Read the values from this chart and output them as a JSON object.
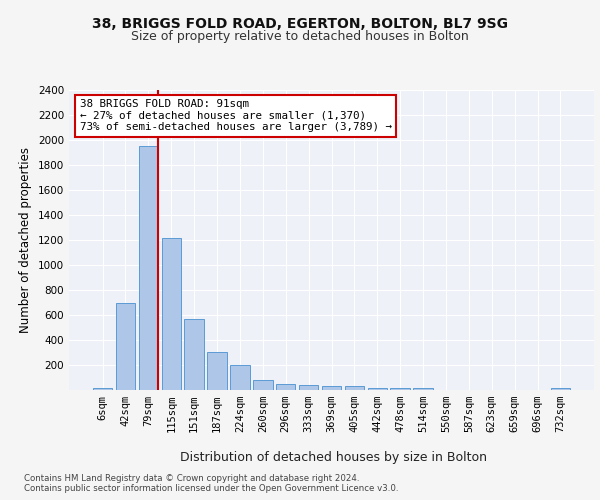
{
  "title_line1": "38, BRIGGS FOLD ROAD, EGERTON, BOLTON, BL7 9SG",
  "title_line2": "Size of property relative to detached houses in Bolton",
  "xlabel": "Distribution of detached houses by size in Bolton",
  "ylabel": "Number of detached properties",
  "categories": [
    "6sqm",
    "42sqm",
    "79sqm",
    "115sqm",
    "151sqm",
    "187sqm",
    "224sqm",
    "260sqm",
    "296sqm",
    "333sqm",
    "369sqm",
    "405sqm",
    "442sqm",
    "478sqm",
    "514sqm",
    "550sqm",
    "587sqm",
    "623sqm",
    "659sqm",
    "696sqm",
    "732sqm"
  ],
  "values": [
    15,
    700,
    1950,
    1220,
    570,
    305,
    200,
    80,
    45,
    38,
    35,
    30,
    20,
    20,
    20,
    0,
    0,
    0,
    0,
    0,
    20
  ],
  "bar_color": "#aec6e8",
  "bar_edge_color": "#5b9bd5",
  "property_bar_index": 2,
  "annotation_text": "38 BRIGGS FOLD ROAD: 91sqm\n← 27% of detached houses are smaller (1,370)\n73% of semi-detached houses are larger (3,789) →",
  "annotation_box_color": "#ffffff",
  "annotation_box_edge_color": "#cc0000",
  "vline_color": "#cc0000",
  "footer_line1": "Contains HM Land Registry data © Crown copyright and database right 2024.",
  "footer_line2": "Contains public sector information licensed under the Open Government Licence v3.0.",
  "ylim": [
    0,
    2400
  ],
  "yticks": [
    0,
    200,
    400,
    600,
    800,
    1000,
    1200,
    1400,
    1600,
    1800,
    2000,
    2200,
    2400
  ],
  "background_color": "#eef2f8",
  "grid_color": "#ffffff",
  "fig_background": "#f5f5f5",
  "title_fontsize": 10,
  "subtitle_fontsize": 9,
  "axis_label_fontsize": 8.5,
  "tick_fontsize": 7.5,
  "footer_fontsize": 6.2
}
